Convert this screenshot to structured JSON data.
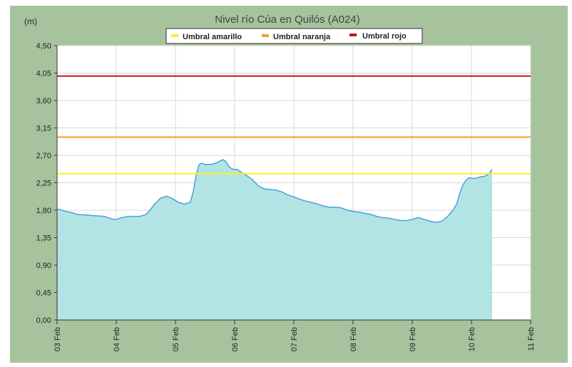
{
  "chart_data": {
    "type": "area",
    "title": "Nivel río Cúa en Quilós  (A024)",
    "ylabel": "(m)",
    "xlabel": "",
    "ylim": [
      0,
      4.5
    ],
    "xlim": [
      "03 Feb",
      "11 Feb"
    ],
    "yticks": [
      "0,00",
      "0,45",
      "0,90",
      "1,35",
      "1,80",
      "2,25",
      "2,70",
      "3,15",
      "3,60",
      "4,05",
      "4,50"
    ],
    "xticks": [
      "03 Feb",
      "04 Feb",
      "05 Feb",
      "06 Feb",
      "07 Feb",
      "08 Feb",
      "09 Feb",
      "10 Feb",
      "11 Feb"
    ],
    "grid": true,
    "legend_position": "top",
    "legend": [
      {
        "name": "Umbral amarillo",
        "color": "#f5f02a"
      },
      {
        "name": "Umbral naranja",
        "color": "#f0a030"
      },
      {
        "name": "Umbral rojo",
        "color": "#c01818"
      }
    ],
    "thresholds": [
      {
        "name": "Umbral amarillo",
        "value": 2.4,
        "color": "#f5f02a"
      },
      {
        "name": "Umbral naranja",
        "value": 3.0,
        "color": "#f0a030"
      },
      {
        "name": "Umbral rojo",
        "value": 4.0,
        "color": "#c01818"
      }
    ],
    "series": [
      {
        "line_color": "#4a9fe0",
        "fill_color": "#b2e4e4",
        "x_days_from_03_Feb": [
          0,
          0.05,
          0.15,
          0.25,
          0.35,
          0.5,
          0.65,
          0.8,
          0.95,
          1.0,
          1.1,
          1.2,
          1.3,
          1.4,
          1.5,
          1.55,
          1.65,
          1.75,
          1.85,
          1.95,
          2.05,
          2.15,
          2.25,
          2.3,
          2.35,
          2.4,
          2.45,
          2.5,
          2.6,
          2.7,
          2.8,
          2.85,
          2.9,
          2.95,
          3.0,
          3.05,
          3.1,
          3.2,
          3.3,
          3.4,
          3.5,
          3.6,
          3.7,
          3.8,
          3.9,
          4.0,
          4.1,
          4.2,
          4.3,
          4.4,
          4.5,
          4.6,
          4.7,
          4.8,
          4.9,
          5.0,
          5.1,
          5.2,
          5.3,
          5.4,
          5.5,
          5.6,
          5.7,
          5.8,
          5.9,
          6.0,
          6.1,
          6.2,
          6.3,
          6.4,
          6.5,
          6.6,
          6.7,
          6.75,
          6.8,
          6.85,
          6.9,
          6.95,
          7.0,
          7.05,
          7.1,
          7.15,
          7.2,
          7.25,
          7.3,
          7.35
        ],
        "values": [
          1.82,
          1.81,
          1.78,
          1.76,
          1.73,
          1.72,
          1.71,
          1.7,
          1.65,
          1.65,
          1.68,
          1.7,
          1.7,
          1.7,
          1.73,
          1.78,
          1.9,
          2.0,
          2.03,
          1.99,
          1.93,
          1.9,
          1.93,
          2.1,
          2.38,
          2.55,
          2.57,
          2.55,
          2.55,
          2.58,
          2.63,
          2.6,
          2.52,
          2.48,
          2.47,
          2.47,
          2.43,
          2.37,
          2.3,
          2.2,
          2.15,
          2.14,
          2.13,
          2.1,
          2.05,
          2.02,
          1.98,
          1.95,
          1.93,
          1.9,
          1.87,
          1.85,
          1.85,
          1.84,
          1.8,
          1.78,
          1.77,
          1.75,
          1.73,
          1.7,
          1.68,
          1.67,
          1.65,
          1.63,
          1.63,
          1.65,
          1.68,
          1.65,
          1.62,
          1.6,
          1.62,
          1.7,
          1.82,
          1.9,
          2.07,
          2.2,
          2.28,
          2.33,
          2.33,
          2.32,
          2.33,
          2.35,
          2.35,
          2.37,
          2.4,
          2.47
        ]
      }
    ]
  },
  "colors": {
    "outer_background": "#a6c39d",
    "plot_background": "#ffffff",
    "grid": "#d8d8d8",
    "title_text": "#444444"
  }
}
